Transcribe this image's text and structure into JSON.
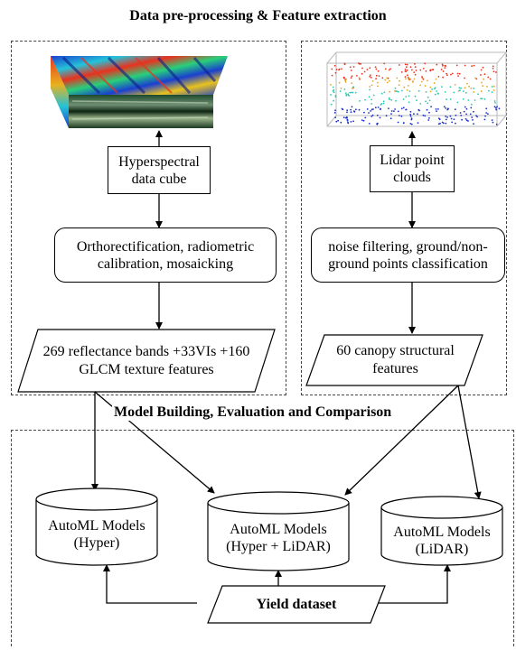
{
  "preprocessing": {
    "title": "Data pre-processing & Feature extraction",
    "hyper_source": "Hyperspectral data cube",
    "hyper_step": "Orthorectification, radiometric calibration, mosaicking",
    "hyper_features": "269 reflectance bands +33VIs +160 GLCM texture features",
    "lidar_source": "Lidar point clouds",
    "lidar_step": "noise filtering, ground/non-ground points classification",
    "lidar_features": "60 canopy structural features"
  },
  "modeling": {
    "title": "Model Building, Evaluation and Comparison",
    "models": [
      {
        "line1": "AutoML Models",
        "line2": "(Hyper)"
      },
      {
        "line1": "AutoML Models",
        "line2": "(Hyper + LiDAR)"
      },
      {
        "line1": "AutoML Models",
        "line2": "(LiDAR)"
      }
    ],
    "dataset": "Yield dataset"
  },
  "colors": {
    "line": "#000000",
    "dashed_border": "#444444",
    "lidar_high": "#e8321e",
    "lidar_mid": "#27c7b0",
    "lidar_low": "#1b2fc9"
  }
}
